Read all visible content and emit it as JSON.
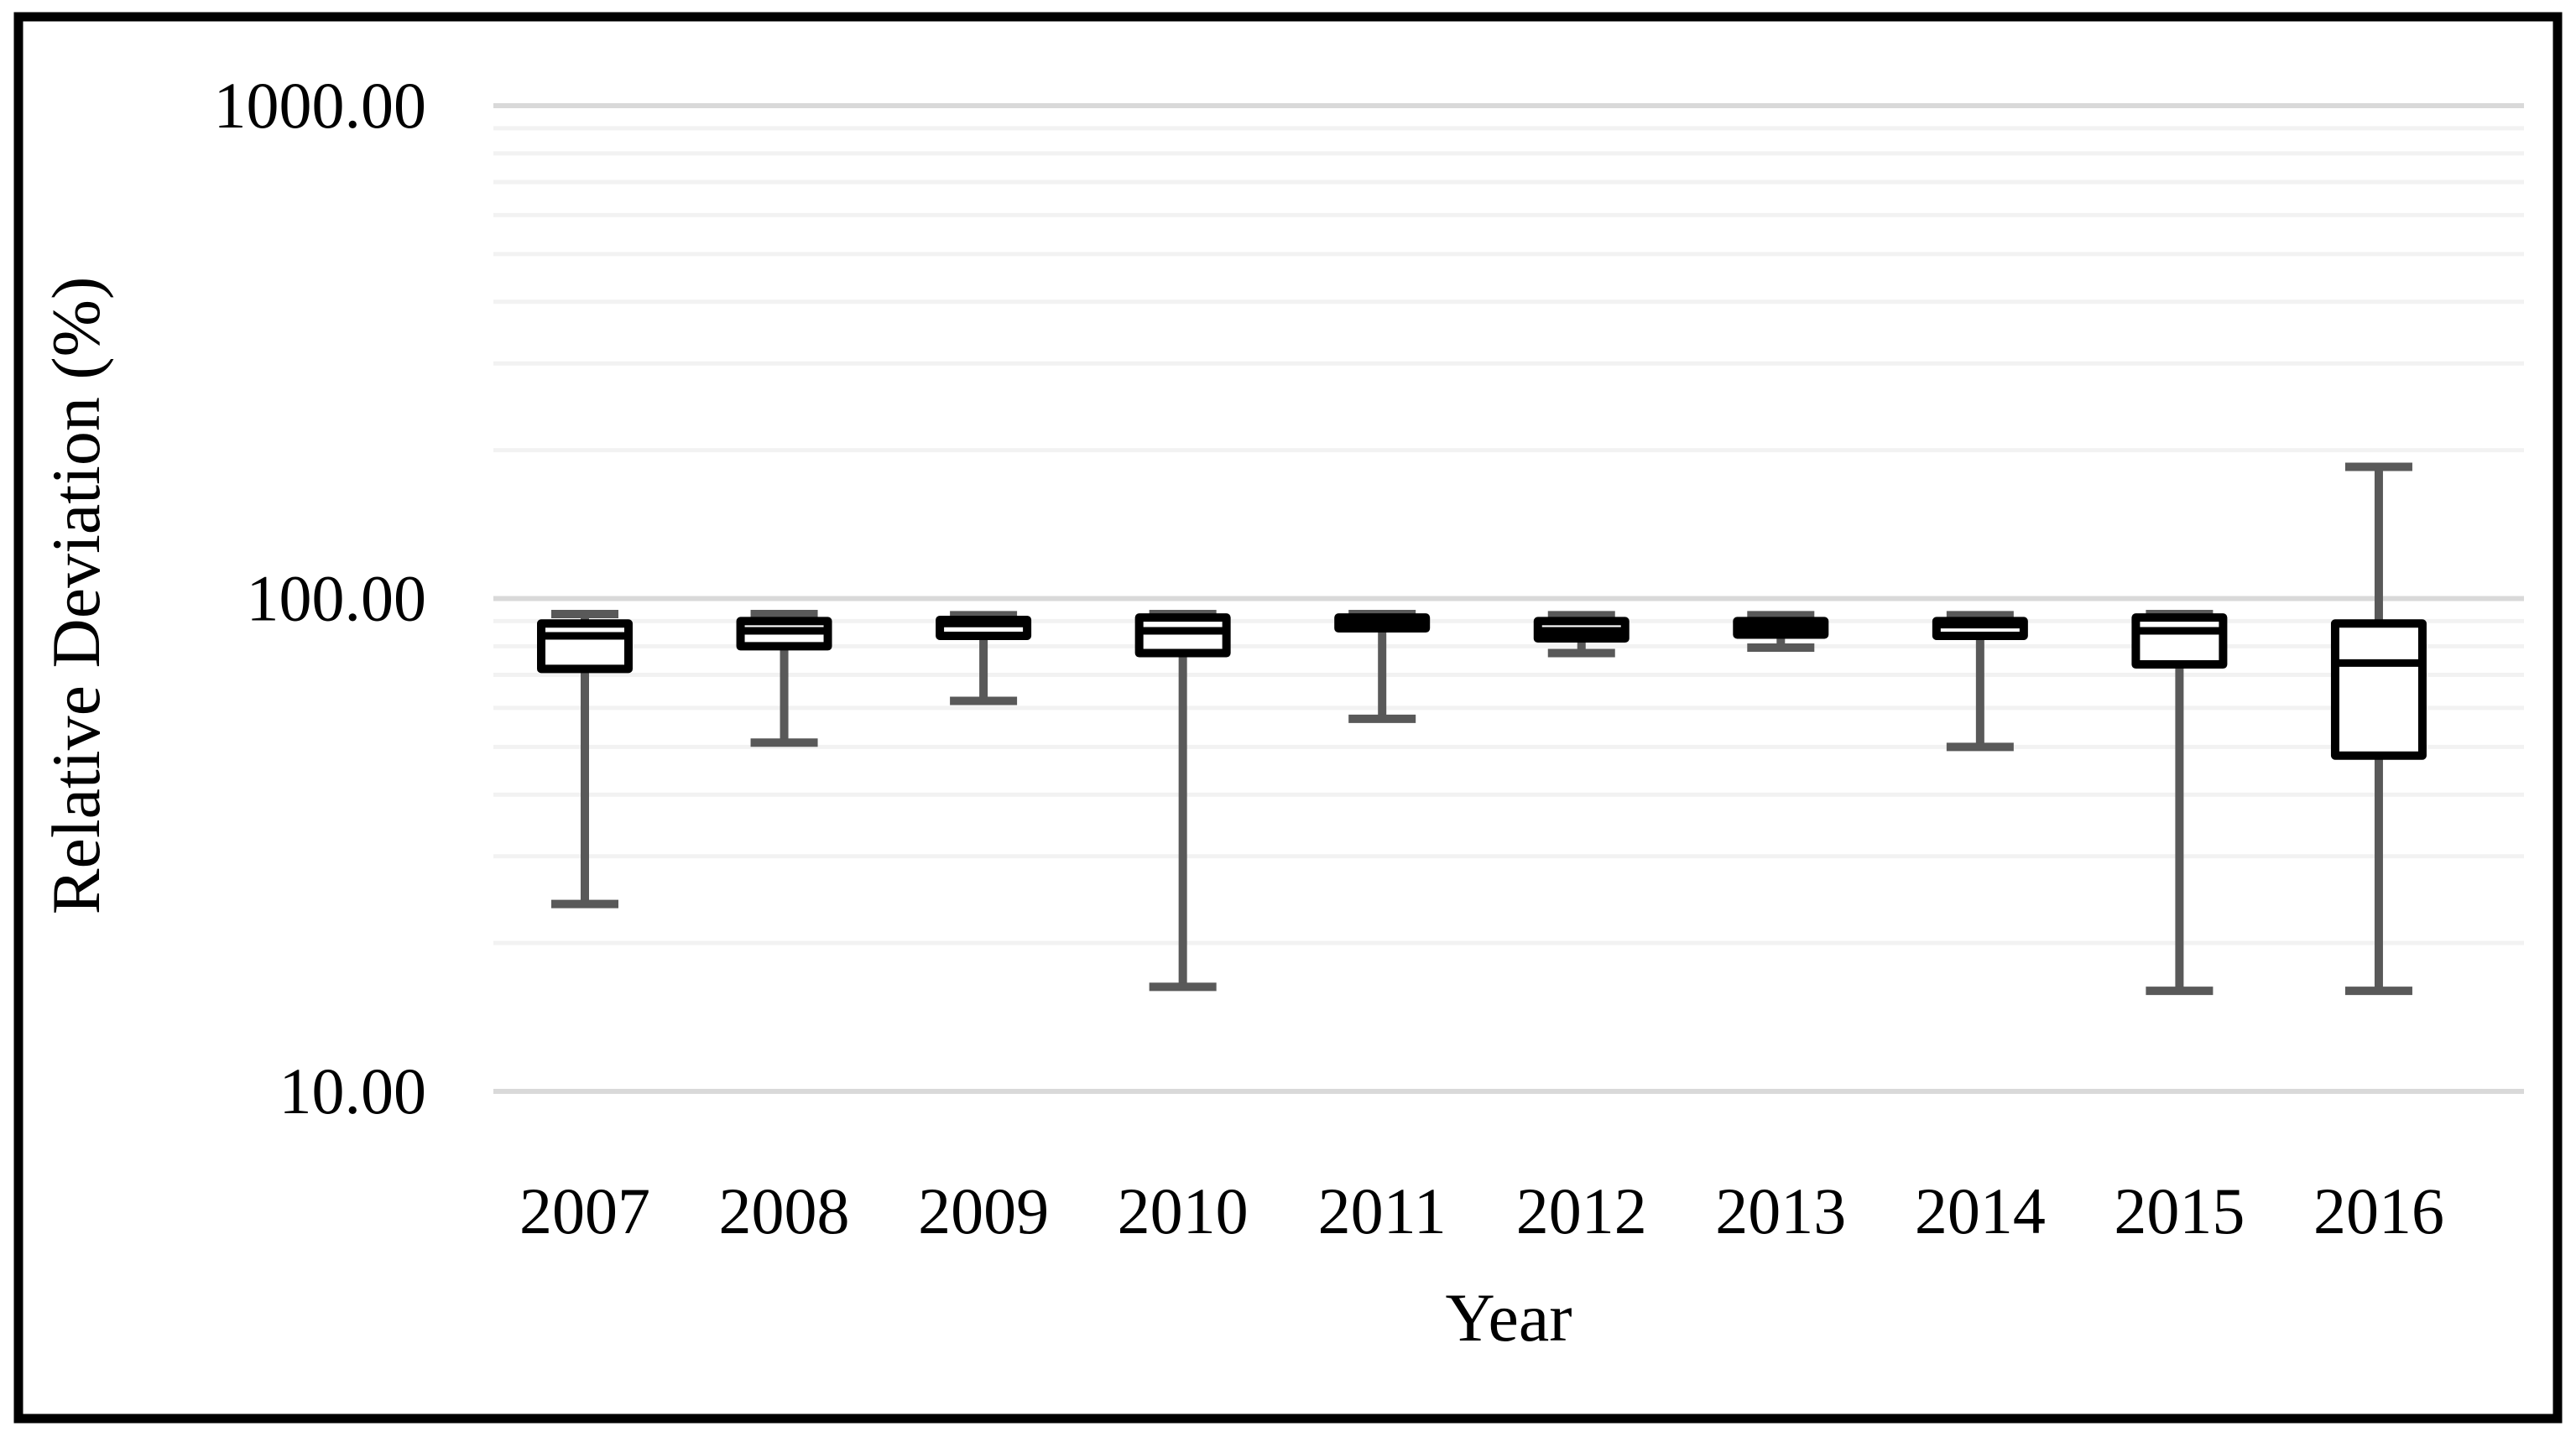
{
  "chart_data": {
    "type": "boxplot",
    "title": "",
    "xlabel": "Year",
    "ylabel": "Relative Deviation (%)",
    "y_scale": "log10",
    "ylim": [
      10,
      1000
    ],
    "grid": "on",
    "y_ticks": [
      {
        "value": 1000,
        "label": "1000.00"
      },
      {
        "value": 100,
        "label": "100.00"
      },
      {
        "value": 10,
        "label": "10.00"
      }
    ],
    "y_minor_gridlines": [
      900,
      800,
      700,
      600,
      500,
      400,
      300,
      200,
      90,
      80,
      70,
      60,
      50,
      40,
      30,
      20
    ],
    "categories": [
      "2007",
      "2008",
      "2009",
      "2010",
      "2011",
      "2012",
      "2013",
      "2014",
      "2015",
      "2016"
    ],
    "series": [
      {
        "year": "2007",
        "whisker_low": 24,
        "q1": 72,
        "median": 84,
        "q3": 89,
        "whisker_high": 93
      },
      {
        "year": "2008",
        "whisker_low": 51,
        "q1": 80,
        "median": 86,
        "q3": 90,
        "whisker_high": 93
      },
      {
        "year": "2009",
        "whisker_low": 62,
        "q1": 84,
        "median": 89,
        "q3": 90.5,
        "whisker_high": 92.5
      },
      {
        "year": "2010",
        "whisker_low": 16.3,
        "q1": 77.5,
        "median": 86,
        "q3": 91.5,
        "whisker_high": 93
      },
      {
        "year": "2011",
        "whisker_low": 57,
        "q1": 87,
        "median": 89.5,
        "q3": 91.5,
        "whisker_high": 93
      },
      {
        "year": "2012",
        "whisker_low": 77.5,
        "q1": 83,
        "median": 86,
        "q3": 90,
        "whisker_high": 92.5
      },
      {
        "year": "2013",
        "whisker_low": 79.5,
        "q1": 84.5,
        "median": 87.5,
        "q3": 90,
        "whisker_high": 92.5
      },
      {
        "year": "2014",
        "whisker_low": 50,
        "q1": 84,
        "median": 88.5,
        "q3": 90,
        "whisker_high": 92.5
      },
      {
        "year": "2015",
        "whisker_low": 16,
        "q1": 73.5,
        "median": 86,
        "q3": 91.5,
        "whisker_high": 93
      },
      {
        "year": "2016",
        "whisker_low": 16,
        "q1": 48,
        "median": 74,
        "q3": 89,
        "whisker_high": 185
      }
    ],
    "colors": {
      "background": "#ffffff",
      "frame_border": "#000000",
      "grid_major": "#d9d9d9",
      "grid_minor": "#f2f2f2",
      "whisker": "#595959",
      "box_border": "#000000",
      "box_fill": "#ffffff",
      "median": "#000000",
      "text": "#000000"
    }
  }
}
